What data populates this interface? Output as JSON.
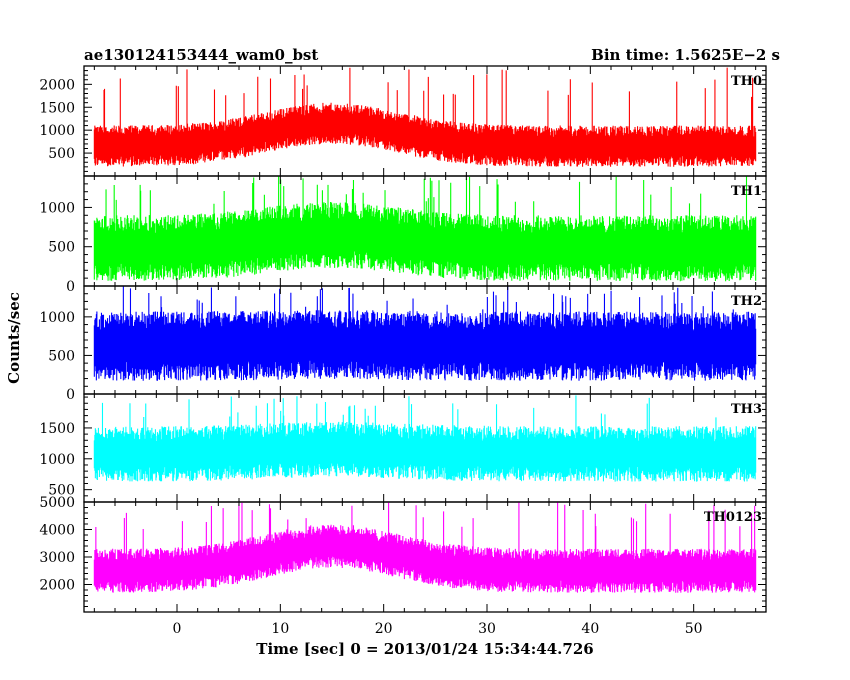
{
  "chart_data": {
    "type": "line",
    "title_left": "ae130124153444_wam0_bst",
    "title_right": "Bin time: 1.5625E−2 s",
    "xlabel": "Time [sec] 0 = 2013/01/24 15:34:44.726",
    "ylabel": "Counts/sec",
    "xlim": [
      -9,
      57
    ],
    "data_x_range": [
      -8,
      56
    ],
    "x_ticks": [
      0,
      10,
      20,
      30,
      40,
      50
    ],
    "x_tick_labels": [
      "0",
      "10",
      "20",
      "30",
      "40",
      "50"
    ],
    "panels": [
      {
        "name": "TH0",
        "color": "#ff0000",
        "ylim": [
          0,
          2400
        ],
        "y_ticks": [
          500,
          1000,
          1500,
          2000
        ],
        "y_tick_labels": [
          "500",
          "1000",
          "1500",
          "2000"
        ],
        "base_level": 650,
        "peak_level": 1150,
        "peak_time": 15,
        "noise_half_width": 450,
        "spike_max": 2400
      },
      {
        "name": "TH1",
        "color": "#00ff00",
        "ylim": [
          0,
          1400
        ],
        "y_ticks": [
          0,
          500,
          1000
        ],
        "y_tick_labels": [
          "0",
          "500",
          "1000"
        ],
        "base_level": 480,
        "peak_level": 650,
        "peak_time": 15,
        "noise_half_width": 420,
        "spike_max": 1400
      },
      {
        "name": "TH2",
        "color": "#0000ff",
        "ylim": [
          0,
          1400
        ],
        "y_ticks": [
          0,
          500,
          1000
        ],
        "y_tick_labels": [
          "0",
          "500",
          "1000"
        ],
        "base_level": 620,
        "peak_level": 640,
        "peak_time": 15,
        "noise_half_width": 450,
        "spike_max": 1400
      },
      {
        "name": "TH3",
        "color": "#00ffff",
        "ylim": [
          300,
          2050
        ],
        "y_ticks": [
          500,
          1000,
          1500
        ],
        "y_tick_labels": [
          "500",
          "1000",
          "1500"
        ],
        "base_level": 1080,
        "peak_level": 1150,
        "peak_time": 15,
        "noise_half_width": 450,
        "spike_max": 2050
      },
      {
        "name": "TH0123",
        "color": "#ff00ff",
        "ylim": [
          1000,
          5000
        ],
        "y_ticks": [
          2000,
          3000,
          4000,
          5000
        ],
        "y_tick_labels": [
          "2000",
          "3000",
          "4000",
          "5000"
        ],
        "base_level": 2500,
        "peak_level": 3400,
        "peak_time": 15,
        "noise_half_width": 800,
        "spike_max": 5000
      }
    ]
  }
}
